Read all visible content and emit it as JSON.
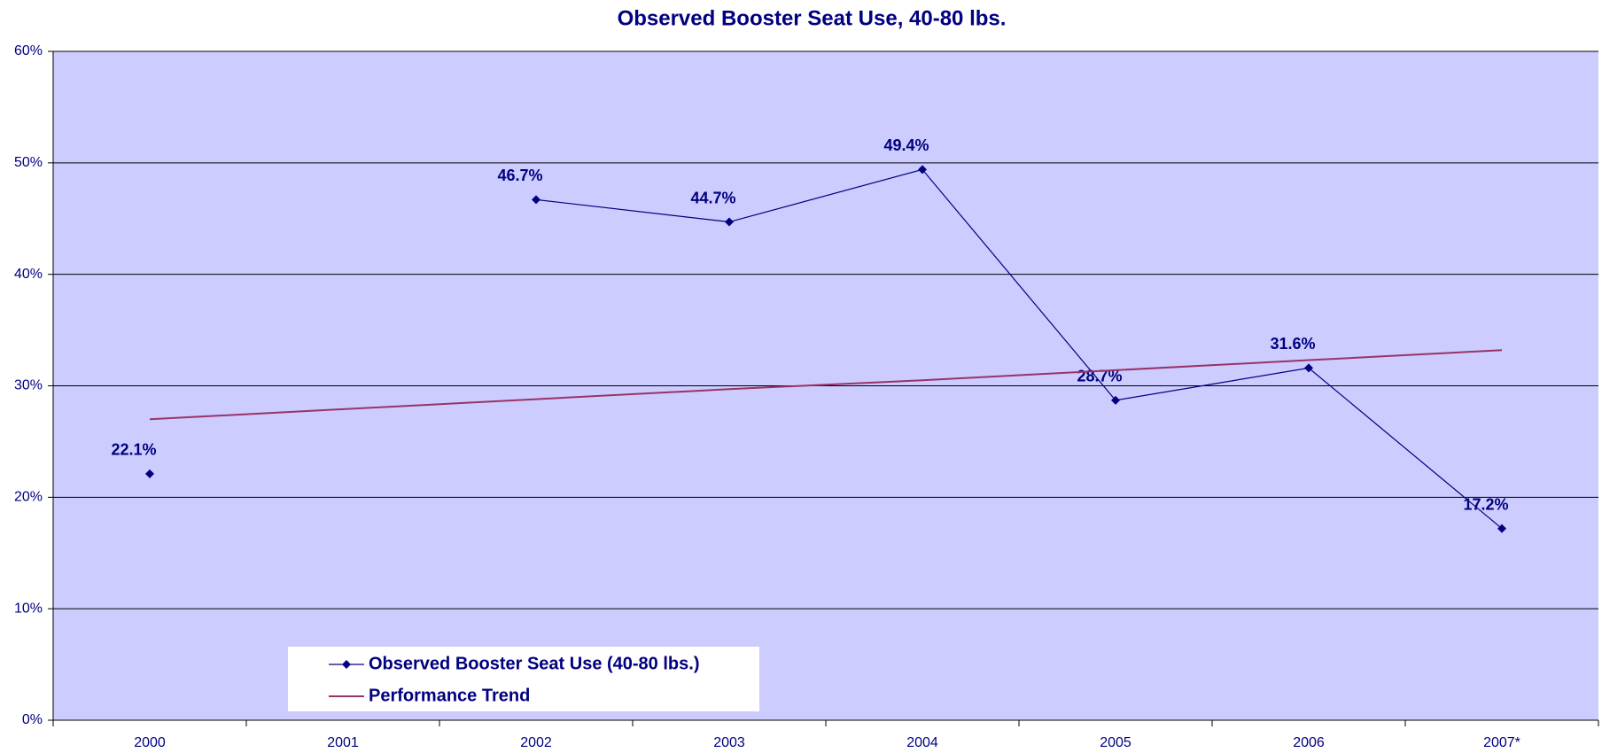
{
  "chart_data": {
    "type": "line",
    "title": "Observed Booster Seat Use, 40-80 lbs.",
    "categories": [
      "2000",
      "2001",
      "2002",
      "2003",
      "2004",
      "2005",
      "2006",
      "2007*"
    ],
    "series": [
      {
        "name": "Observed Booster Seat Use (40-80 lbs.)",
        "color": "#000080",
        "values": [
          22.1,
          null,
          46.7,
          44.7,
          49.4,
          28.7,
          31.6,
          17.2
        ],
        "value_labels": [
          "22.1%",
          null,
          "46.7%",
          "44.7%",
          "49.4%",
          "28.7%",
          "31.6%",
          "17.2%"
        ]
      },
      {
        "name": "Performance Trend",
        "color": "#993366",
        "values": [
          27.0,
          27.9,
          28.8,
          29.7,
          30.5,
          31.4,
          32.3,
          33.2
        ]
      }
    ],
    "ylim": [
      0,
      60
    ],
    "yticks": [
      {
        "value": 0,
        "label": "0%"
      },
      {
        "value": 10,
        "label": "10%"
      },
      {
        "value": 20,
        "label": "20%"
      },
      {
        "value": 30,
        "label": "30%"
      },
      {
        "value": 40,
        "label": "40%"
      },
      {
        "value": 50,
        "label": "50%"
      },
      {
        "value": 60,
        "label": "60%"
      }
    ],
    "grid": true,
    "legend": "bottom-left"
  }
}
